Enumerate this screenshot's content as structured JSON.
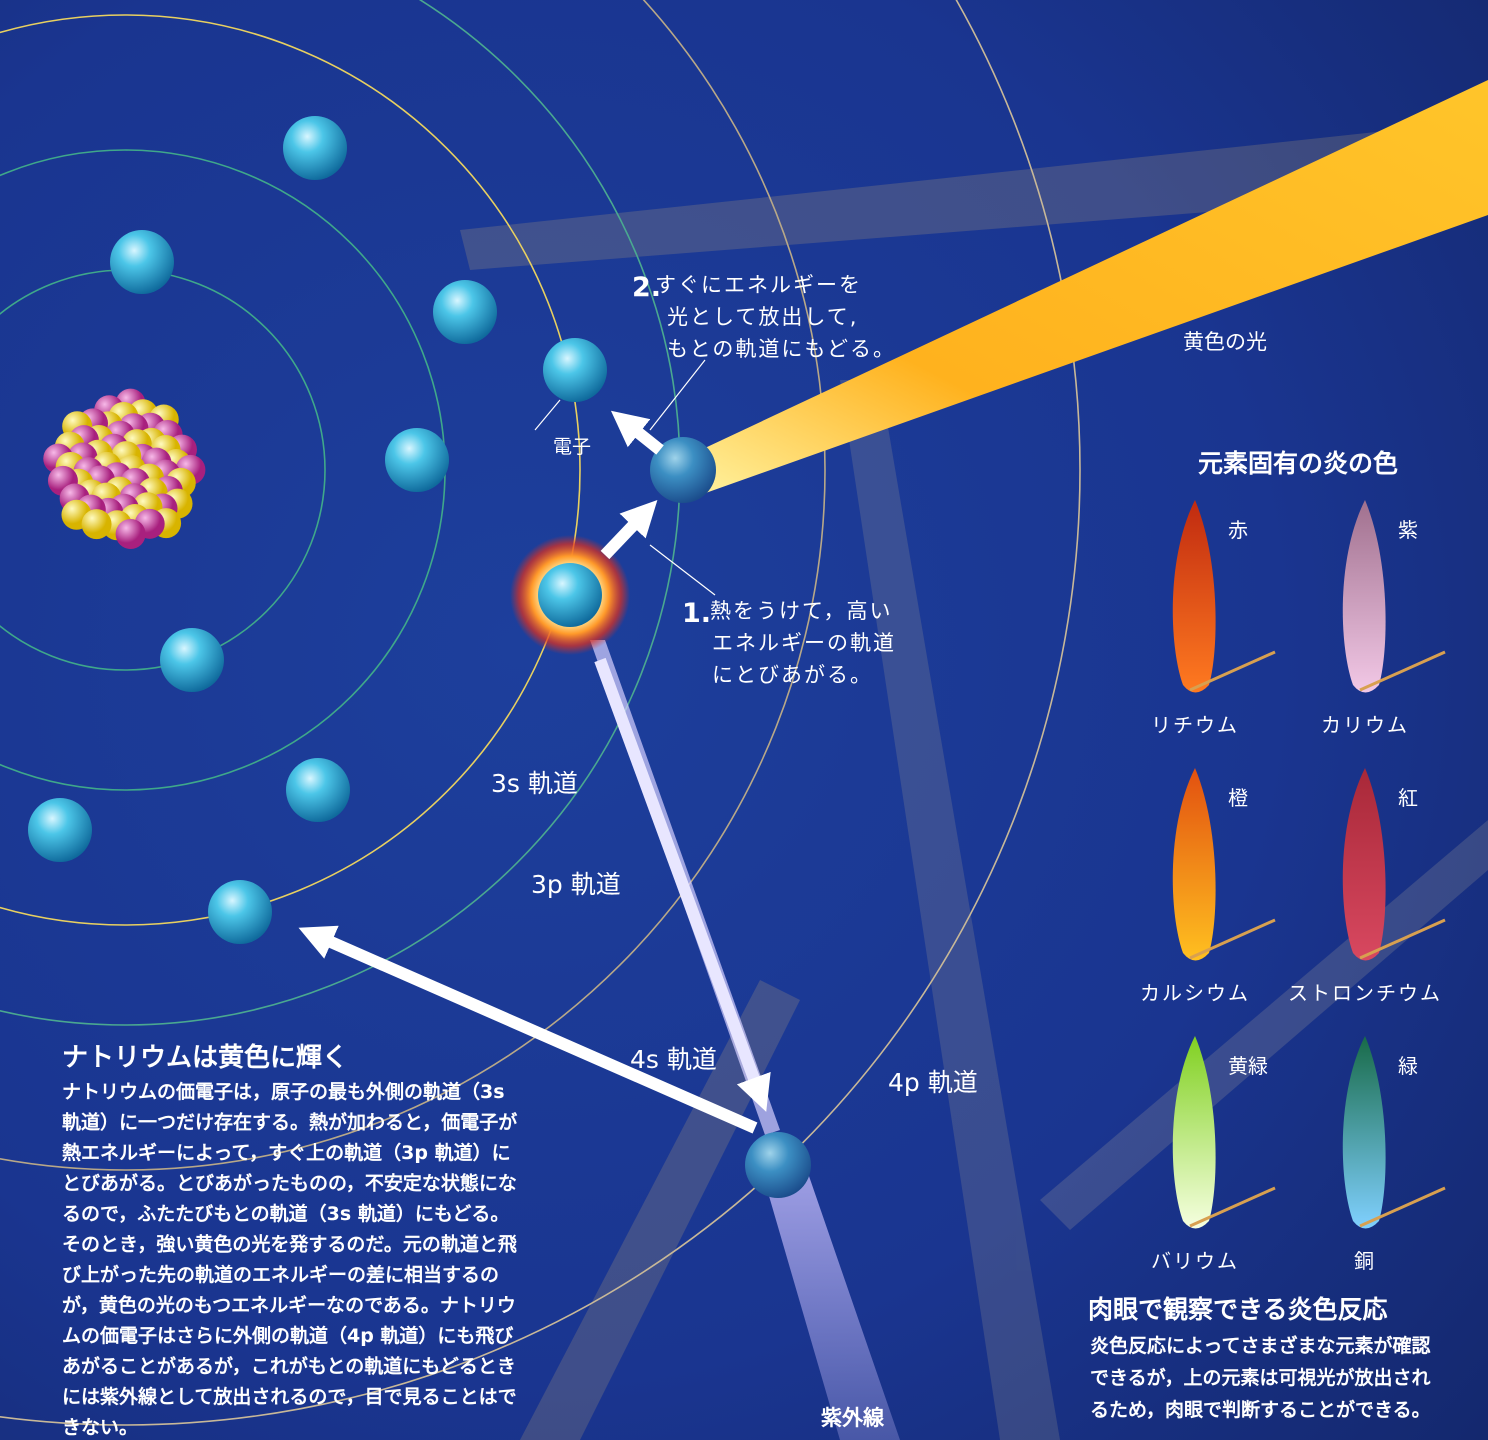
{
  "labels": {
    "electron": "電子",
    "step2": {
      "number": "2.",
      "lines": [
        "すぐにエネルギーを",
        "光として放出して,",
        "もとの軌道にもどる。"
      ]
    },
    "step1": {
      "number": "1.",
      "lines": [
        "熱をうけて，高い",
        "エネルギーの軌道",
        "にとびあがる。"
      ]
    },
    "yellow_light": "黄色の光",
    "orbitals": [
      "3s 軌道",
      "3p 軌道",
      "4s 軌道",
      "4p 軌道"
    ],
    "uv": "紫外線"
  },
  "flames": {
    "title": "元素固有の炎の色",
    "items": [
      {
        "color_name": "赤",
        "element": "リチウム"
      },
      {
        "color_name": "紫",
        "element": "カリウム"
      },
      {
        "color_name": "橙",
        "element": "カルシウム"
      },
      {
        "color_name": "紅",
        "element": "ストロンチウム"
      },
      {
        "color_name": "黄緑",
        "element": "バリウム"
      },
      {
        "color_name": "緑",
        "element": "銅"
      }
    ]
  },
  "sodium": {
    "title": "ナトリウムは黄色に輝く",
    "body": [
      "ナトリウムの価電子は，原子の最も外側の軌道（3s",
      "軌道）に一つだけ存在する。熱が加わると，価電子が",
      "熱エネルギーによって，すぐ上の軌道（3p 軌道）に",
      "とびあがる。とびあがったものの，不安定な状態にな",
      "るので，ふたたびもとの軌道（3s 軌道）にもどる。",
      "そのとき，強い黄色の光を発するのだ。元の軌道と飛",
      "び上がった先の軌道のエネルギーの差に相当するの",
      "が，黄色の光のもつエネルギーなのである。ナトリウ",
      "ムの価電子はさらに外側の軌道（4p 軌道）にも飛び",
      "あがることがあるが，これがもとの軌道にもどるとき",
      "には紫外線として放出されるので，目で見ることはで",
      "きない。"
    ]
  },
  "observation": {
    "title": "肉眼で観察できる炎色反応",
    "body": [
      "炎色反応によってさまざまな元素が確認",
      "できるが，上の元素は可視光が放出され",
      "るため，肉眼で判断することができる。"
    ]
  }
}
